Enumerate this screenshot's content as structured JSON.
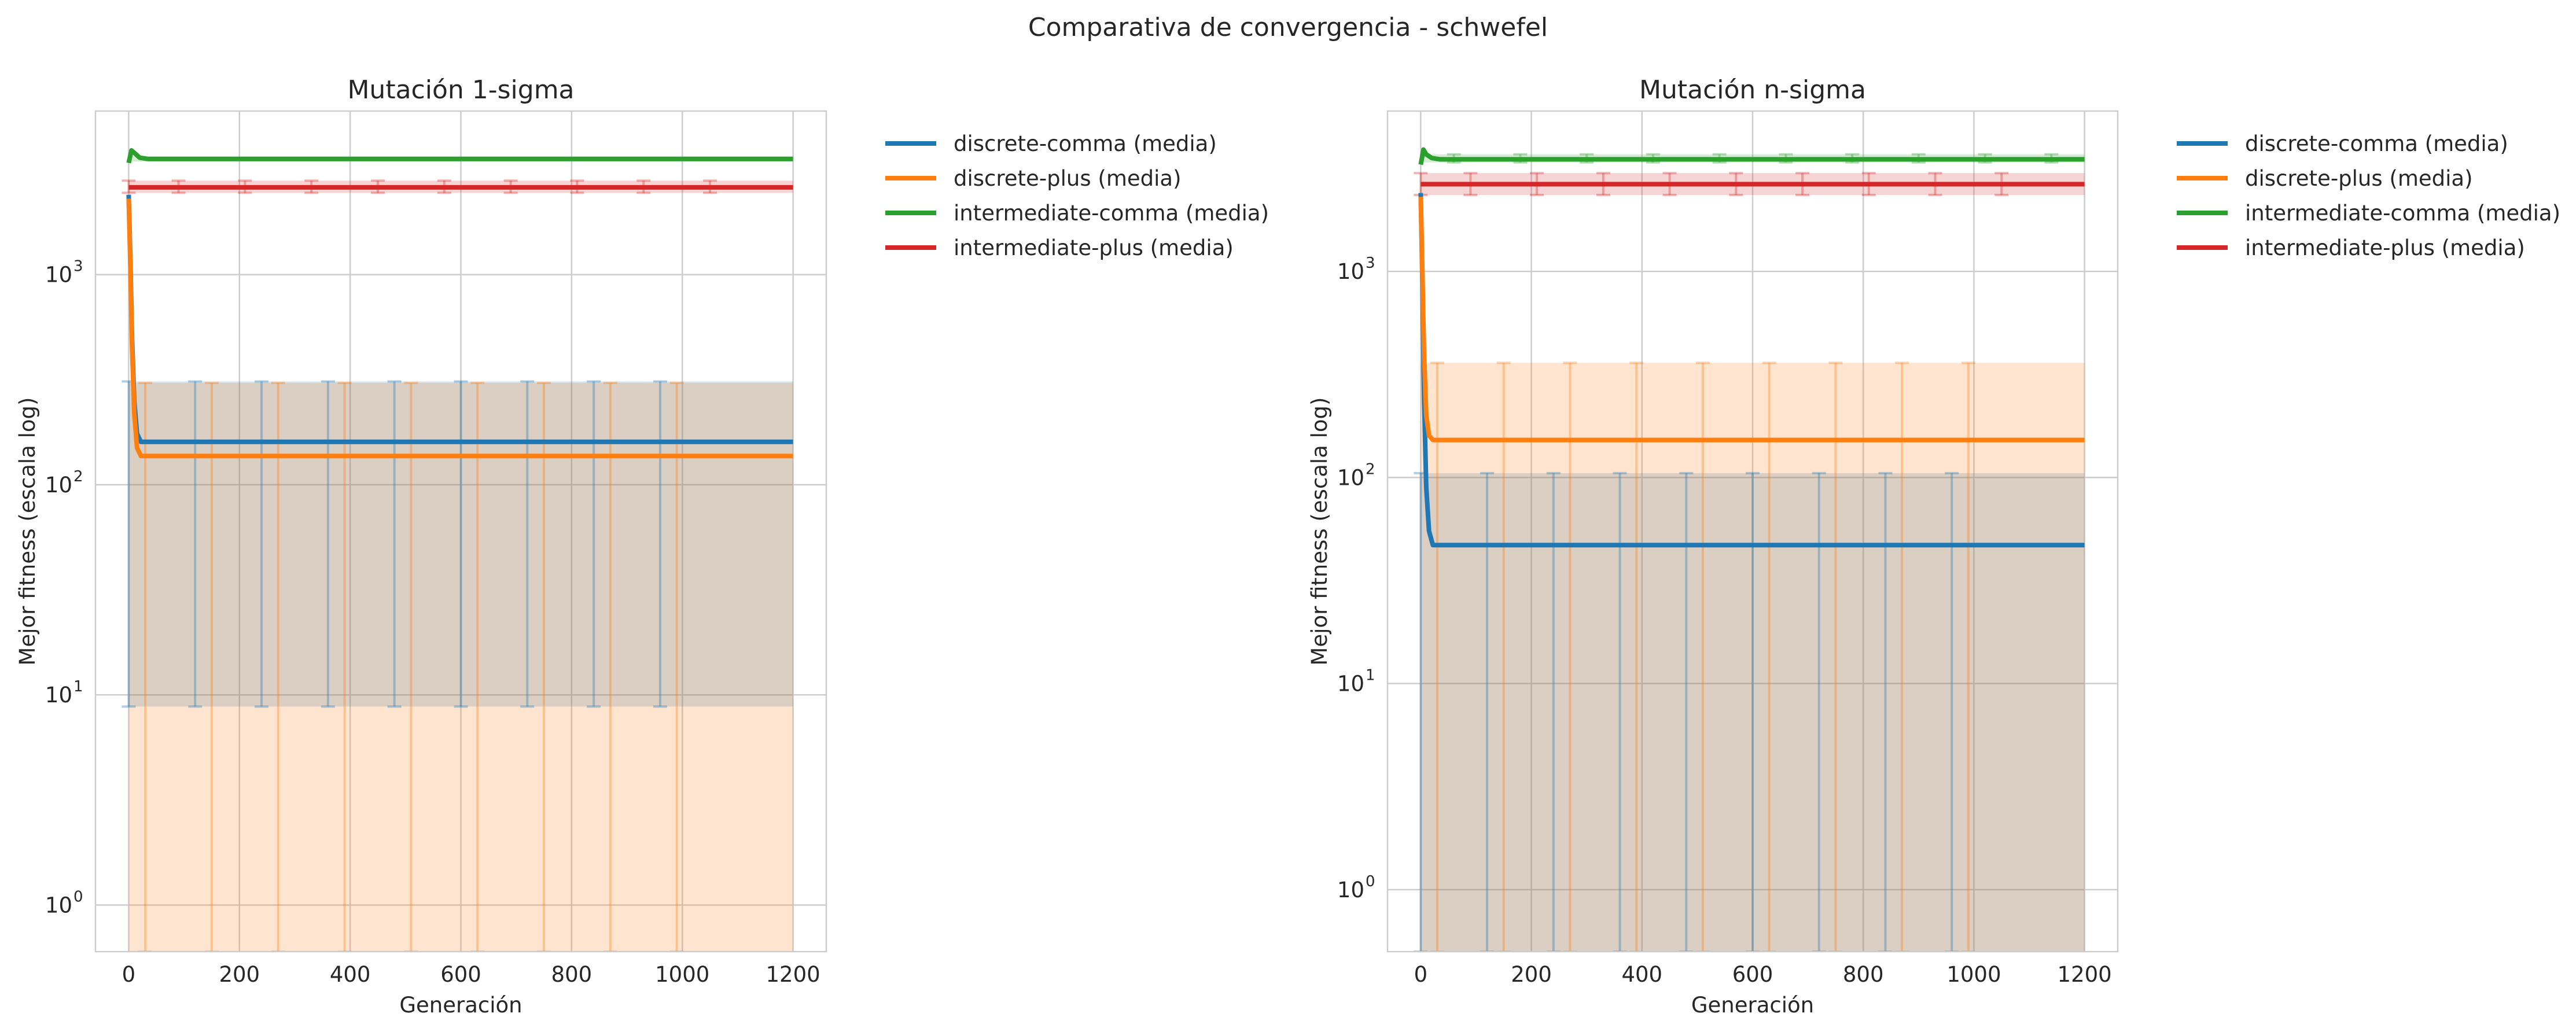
{
  "figure": {
    "title": "Comparativa de convergencia - schwefel"
  },
  "colors": {
    "discrete-comma": "#1f77b4",
    "discrete-plus": "#ff7f0e",
    "intermediate-comma": "#2ca02c",
    "intermediate-plus": "#d62728"
  },
  "chart_data": [
    {
      "type": "line",
      "title": "Mutación 1-sigma",
      "xlabel": "Generación",
      "ylabel": "Mejor fitness (escala log)",
      "yscale": "log",
      "xlim": [
        -60,
        1260
      ],
      "ylim": [
        0.6,
        6000
      ],
      "xticks": [
        0,
        200,
        400,
        600,
        800,
        1000,
        1200
      ],
      "yticks": [
        {
          "base": "10",
          "exp": "0",
          "value": 1
        },
        {
          "base": "10",
          "exp": "1",
          "value": 10
        },
        {
          "base": "10",
          "exp": "2",
          "value": 100
        },
        {
          "base": "10",
          "exp": "3",
          "value": 1000
        }
      ],
      "grid": true,
      "legend": "outside-right-top",
      "series": [
        {
          "name": "discrete-comma (media)",
          "color_key": "discrete-comma",
          "x": [
            0,
            3,
            6,
            10,
            15,
            22,
            1200
          ],
          "mean": [
            2400,
            1200,
            500,
            250,
            175,
            160,
            160
          ],
          "band": [
            8.8,
            310
          ],
          "errorbar_x": [
            0,
            120,
            240,
            360,
            480,
            600,
            720,
            840,
            960
          ]
        },
        {
          "name": "discrete-plus (media)",
          "color_key": "discrete-plus",
          "x": [
            0,
            3,
            6,
            10,
            15,
            22,
            1200
          ],
          "mean": [
            2300,
            1100,
            450,
            220,
            150,
            137,
            137
          ],
          "band": [
            0.6,
            305
          ],
          "errorbar_x": [
            30,
            150,
            270,
            390,
            510,
            630,
            750,
            870,
            990
          ]
        },
        {
          "name": "intermediate-comma (media)",
          "color_key": "intermediate-comma",
          "x": [
            0,
            5,
            10,
            20,
            35,
            1200
          ],
          "mean": [
            3400,
            3900,
            3800,
            3600,
            3550,
            3550
          ],
          "band": [
            3450,
            3650
          ],
          "errorbar_x": []
        },
        {
          "name": "intermediate-plus (media)",
          "color_key": "intermediate-plus",
          "x": [
            0,
            1200
          ],
          "mean": [
            2600,
            2600
          ],
          "band": [
            2450,
            2800
          ],
          "errorbar_x": [
            0,
            90,
            210,
            330,
            450,
            570,
            690,
            810,
            930,
            1050
          ]
        }
      ]
    },
    {
      "type": "line",
      "title": "Mutación n-sigma",
      "xlabel": "Generación",
      "ylabel": "Mejor fitness (escala log)",
      "yscale": "log",
      "xlim": [
        -60,
        1260
      ],
      "ylim": [
        0.5,
        6000
      ],
      "xticks": [
        0,
        200,
        400,
        600,
        800,
        1000,
        1200
      ],
      "yticks": [
        {
          "base": "10",
          "exp": "0",
          "value": 1
        },
        {
          "base": "10",
          "exp": "1",
          "value": 10
        },
        {
          "base": "10",
          "exp": "2",
          "value": 100
        },
        {
          "base": "10",
          "exp": "3",
          "value": 1000
        }
      ],
      "grid": true,
      "legend": "outside-right-top",
      "series": [
        {
          "name": "discrete-comma (media)",
          "color_key": "discrete-comma",
          "x": [
            0,
            3,
            6,
            10,
            15,
            22,
            1200
          ],
          "mean": [
            2400,
            900,
            250,
            90,
            55,
            47,
            47
          ],
          "band": [
            0.5,
            105
          ],
          "errorbar_x": [
            0,
            120,
            240,
            360,
            480,
            600,
            720,
            840,
            960
          ]
        },
        {
          "name": "discrete-plus (media)",
          "color_key": "discrete-plus",
          "x": [
            0,
            3,
            6,
            10,
            15,
            22,
            1200
          ],
          "mean": [
            2300,
            1000,
            400,
            200,
            160,
            152,
            152
          ],
          "band": [
            0.5,
            360
          ],
          "errorbar_x": [
            30,
            150,
            270,
            390,
            510,
            630,
            750,
            870,
            990
          ]
        },
        {
          "name": "intermediate-comma (media)",
          "color_key": "intermediate-comma",
          "x": [
            0,
            5,
            10,
            20,
            35,
            1200
          ],
          "mean": [
            3300,
            3900,
            3700,
            3550,
            3500,
            3500
          ],
          "band": [
            3380,
            3700
          ],
          "errorbar_x": [
            60,
            180,
            300,
            420,
            540,
            660,
            780,
            900,
            1020,
            1140
          ]
        },
        {
          "name": "intermediate-plus (media)",
          "color_key": "intermediate-plus",
          "x": [
            0,
            1200
          ],
          "mean": [
            2650,
            2650
          ],
          "band": [
            2350,
            3000
          ],
          "errorbar_x": [
            0,
            90,
            210,
            330,
            450,
            570,
            690,
            810,
            930,
            1050
          ]
        }
      ]
    }
  ]
}
